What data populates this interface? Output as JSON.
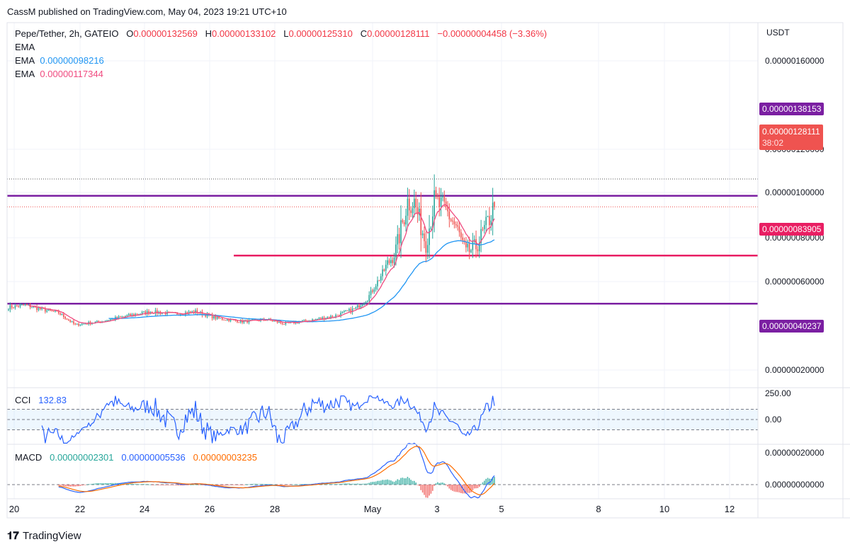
{
  "publish_line": "CassM published on TradingView.com, May 04, 2023 19:21 UTC+10",
  "footer_brand": "TradingView",
  "legend": {
    "symbol": "Pepe/Tether, 2h, GATEIO",
    "o_label": "O",
    "o_value": "0.00000132569",
    "h_label": "H",
    "h_value": "0.00000133102",
    "l_label": "L",
    "l_value": "0.00000125310",
    "c_label": "C",
    "c_value": "0.00000128111",
    "change": "−0.00000004458 (−3.36%)",
    "ema1_label": "EMA",
    "ema2_label": "EMA",
    "ema2_value": "0.00000098216",
    "ema3_label": "EMA",
    "ema3_value": "0.00000117344"
  },
  "cci_legend": {
    "label": "CCI",
    "value": "132.83"
  },
  "macd_legend": {
    "label": "MACD",
    "hist": "0.00000002301",
    "macd": "0.00000005536",
    "signal": "0.00000003235"
  },
  "price_axis": {
    "currency": "USDT",
    "ticks": [
      "0.00000160000",
      "0.00000120000",
      "0.00000100000",
      "0.00000080000",
      "0.00000060000",
      "0.00000020000"
    ],
    "price_badge": "0.00000128111",
    "countdown": "38:02",
    "levels": [
      {
        "value": "0.00000138153",
        "color": "#7b1fa2"
      },
      {
        "value": "0.00000083905",
        "color": "#e91e63"
      },
      {
        "value": "0.00000040237",
        "color": "#7b1fa2"
      }
    ]
  },
  "cci_axis": [
    "250.00",
    "0.00"
  ],
  "macd_axis": [
    "0.00000020000",
    "0.00000000000"
  ],
  "time_axis": [
    "20",
    "22",
    "24",
    "26",
    "28",
    "May",
    "3",
    "5",
    "8",
    "10",
    "12"
  ],
  "colors": {
    "up": "#26a69a",
    "down": "#ef5350",
    "ema_slow": "#2196f3",
    "ema_fast": "#f04a7f",
    "cci": "#2962ff",
    "macd": "#2962ff",
    "signal": "#ff6d00"
  },
  "chart_data": {
    "type": "candlestick",
    "symbol": "Pepe/Tether, 2h, GATEIO",
    "ylabel": "USDT",
    "ylim": [
      1e-07,
      1.7e-06
    ],
    "horizontal_levels": [
      1.38153e-06,
      8.3905e-07,
      4.0237e-07
    ],
    "waypoints_close": [
      [
        0,
        3.7e-07
      ],
      [
        10,
        3.9e-07
      ],
      [
        20,
        3.5e-07
      ],
      [
        30,
        3.2e-07
      ],
      [
        40,
        2.1e-07
      ],
      [
        55,
        2.4e-07
      ],
      [
        70,
        2.9e-07
      ],
      [
        85,
        3.3e-07
      ],
      [
        100,
        3.1e-07
      ],
      [
        112,
        3.3e-07
      ],
      [
        125,
        2.7e-07
      ],
      [
        140,
        2.4e-07
      ],
      [
        155,
        2.6e-07
      ],
      [
        165,
        2.2e-07
      ],
      [
        180,
        2.5e-07
      ],
      [
        195,
        2.9e-07
      ],
      [
        208,
        3.6e-07
      ],
      [
        215,
        4.5e-07
      ],
      [
        224,
        6.8e-07
      ],
      [
        232,
        8.9e-07
      ],
      [
        236,
        1.14e-06
      ],
      [
        239,
        1.33e-06
      ],
      [
        243,
        1.32e-06
      ],
      [
        250,
        9.5e-07
      ],
      [
        255,
        1.33e-06
      ],
      [
        262,
        1.25e-06
      ],
      [
        268,
        1.1e-06
      ],
      [
        274,
        8.6e-07
      ],
      [
        280,
        9.2e-07
      ],
      [
        286,
        1.1e-06
      ],
      [
        291,
        1.29e-06
      ]
    ],
    "ema_slow_last": 9.8216e-07,
    "ema_fast_last": 1.17344e-06,
    "last": {
      "open": 1.32569e-06,
      "high": 1.33102e-06,
      "low": 1.2531e-06,
      "close": 1.28111e-06
    },
    "cci": {
      "ylim": [
        -250,
        250
      ],
      "bands": [
        100,
        -100
      ],
      "last": 132.83
    },
    "macd": {
      "last_hist": 2.301e-08,
      "last_macd": 5.536e-08,
      "last_signal": 3.235e-08
    }
  }
}
